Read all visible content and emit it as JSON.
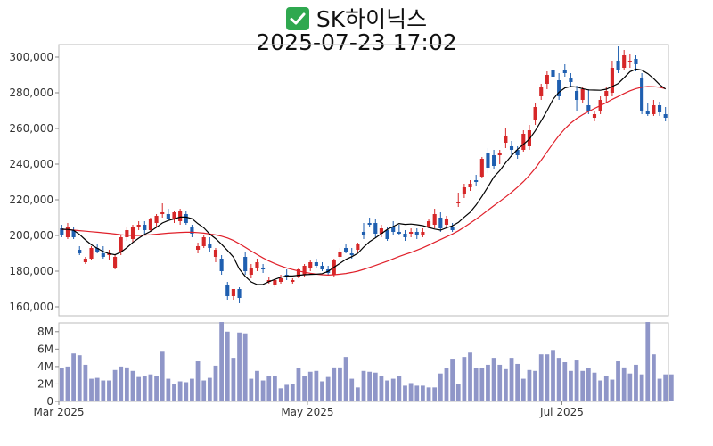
{
  "header": {
    "icon": "check-mark-icon",
    "stock_name": "SK하이닉스",
    "datetime": "2025-07-23 17:02"
  },
  "colors": {
    "up": "#d62728",
    "down": "#1f5fb0",
    "ma_short": "#000000",
    "ma_long": "#e0202a",
    "volume": "#8f96c8"
  },
  "chart_data": [
    {
      "type": "candlestick",
      "title": "",
      "y_ticks": [
        "160,000",
        "180,000",
        "200,000",
        "220,000",
        "240,000",
        "260,000",
        "280,000",
        "300,000"
      ],
      "x_ticks": [
        "Mar 2025",
        "May 2025",
        "Jul 2025"
      ],
      "ylim": [
        155000,
        307000
      ],
      "candles": [
        [
          204000,
          206000,
          199000,
          200000
        ],
        [
          199000,
          207000,
          198000,
          205000
        ],
        [
          203000,
          205000,
          198000,
          199000
        ],
        [
          192000,
          194000,
          189000,
          190000
        ],
        [
          185000,
          188000,
          184000,
          187000
        ],
        [
          187000,
          194000,
          186000,
          193000
        ],
        [
          193000,
          195000,
          190000,
          191000
        ],
        [
          190000,
          194000,
          187000,
          188000
        ],
        [
          189000,
          192000,
          186000,
          190000
        ],
        [
          182000,
          189000,
          181000,
          188000
        ],
        [
          191000,
          200000,
          189000,
          199000
        ],
        [
          199000,
          205000,
          197000,
          203000
        ],
        [
          198000,
          206000,
          196000,
          205000
        ],
        [
          205000,
          208000,
          203000,
          206000
        ],
        [
          206000,
          208000,
          201000,
          203000
        ],
        [
          203000,
          210000,
          202000,
          209000
        ],
        [
          207000,
          212000,
          205000,
          211000
        ],
        [
          212000,
          218000,
          210000,
          213000
        ],
        [
          212000,
          215000,
          208000,
          209000
        ],
        [
          209000,
          214000,
          207000,
          213000
        ],
        [
          208000,
          215000,
          206000,
          214000
        ],
        [
          212000,
          214000,
          206000,
          207000
        ],
        [
          205000,
          206000,
          199000,
          201000
        ],
        [
          192000,
          196000,
          190000,
          194000
        ],
        [
          194000,
          200000,
          193000,
          199000
        ],
        [
          195000,
          199000,
          191000,
          193000
        ],
        [
          188000,
          193000,
          185000,
          192000
        ],
        [
          187000,
          189000,
          178000,
          180000
        ],
        [
          172000,
          174000,
          164000,
          166000
        ],
        [
          166000,
          170000,
          164000,
          170000
        ],
        [
          170000,
          171000,
          162000,
          165000
        ],
        [
          188000,
          191000,
          178000,
          180000
        ],
        [
          178000,
          184000,
          176000,
          182000
        ],
        [
          182000,
          187000,
          180000,
          185000
        ],
        [
          182000,
          184000,
          179000,
          181000
        ],
        [
          174000,
          177000,
          173000,
          175000
        ],
        [
          172000,
          176000,
          171000,
          175000
        ],
        [
          174000,
          178000,
          173000,
          176000
        ],
        [
          178000,
          181000,
          175000,
          177000
        ],
        [
          174000,
          176000,
          173000,
          175000
        ],
        [
          177000,
          182000,
          176000,
          181000
        ],
        [
          178000,
          184000,
          177000,
          183000
        ],
        [
          182000,
          186000,
          180000,
          185000
        ],
        [
          185000,
          187000,
          182000,
          183000
        ],
        [
          183000,
          185000,
          180000,
          181000
        ],
        [
          181000,
          183000,
          178000,
          179000
        ],
        [
          178000,
          187000,
          177000,
          186000
        ],
        [
          188000,
          193000,
          186000,
          191000
        ],
        [
          193000,
          195000,
          190000,
          191000
        ],
        [
          190000,
          193000,
          187000,
          189000
        ],
        [
          192000,
          196000,
          191000,
          195000
        ],
        [
          202000,
          207000,
          198000,
          200000
        ],
        [
          207000,
          210000,
          205000,
          206000
        ],
        [
          207000,
          209000,
          199000,
          201000
        ],
        [
          201000,
          206000,
          199000,
          204000
        ],
        [
          203000,
          205000,
          197000,
          198000
        ],
        [
          205000,
          208000,
          200000,
          202000
        ],
        [
          202000,
          206000,
          200000,
          201000
        ],
        [
          201000,
          203000,
          197000,
          199000
        ],
        [
          201000,
          204000,
          199000,
          202000
        ],
        [
          202000,
          204000,
          198000,
          200000
        ],
        [
          200000,
          204000,
          199000,
          202000
        ],
        [
          205000,
          209000,
          204000,
          208000
        ],
        [
          206000,
          215000,
          204000,
          212000
        ],
        [
          210000,
          213000,
          202000,
          204000
        ],
        [
          206000,
          211000,
          205000,
          209000
        ],
        [
          205000,
          207000,
          202000,
          203000
        ],
        [
          218000,
          224000,
          216000,
          219000
        ],
        [
          223000,
          229000,
          221000,
          227000
        ],
        [
          227000,
          231000,
          225000,
          229000
        ],
        [
          231000,
          234000,
          228000,
          230000
        ],
        [
          233000,
          244000,
          232000,
          243000
        ],
        [
          246000,
          249000,
          235000,
          238000
        ],
        [
          245000,
          248000,
          237000,
          239000
        ],
        [
          245000,
          248000,
          240000,
          246000
        ],
        [
          252000,
          260000,
          249000,
          256000
        ],
        [
          250000,
          253000,
          244000,
          248000
        ],
        [
          248000,
          250000,
          243000,
          245000
        ],
        [
          248000,
          259000,
          247000,
          257000
        ],
        [
          250000,
          262000,
          248000,
          259000
        ],
        [
          265000,
          274000,
          262000,
          272000
        ],
        [
          278000,
          285000,
          276000,
          283000
        ],
        [
          285000,
          292000,
          282000,
          290000
        ],
        [
          293000,
          296000,
          287000,
          289000
        ],
        [
          287000,
          291000,
          276000,
          278000
        ],
        [
          293000,
          296000,
          289000,
          291000
        ],
        [
          288000,
          291000,
          283000,
          286000
        ],
        [
          281000,
          284000,
          270000,
          276000
        ],
        [
          276000,
          283000,
          274000,
          282000
        ],
        [
          273000,
          282000,
          268000,
          270000
        ],
        [
          266000,
          270000,
          264000,
          268000
        ],
        [
          270000,
          278000,
          268000,
          276000
        ],
        [
          278000,
          283000,
          274000,
          281000
        ],
        [
          280000,
          298000,
          278000,
          294000
        ],
        [
          298000,
          306000,
          291000,
          293000
        ],
        [
          294000,
          304000,
          293000,
          301000
        ],
        [
          297000,
          302000,
          294000,
          298000
        ],
        [
          299000,
          301000,
          292000,
          296000
        ],
        [
          288000,
          291000,
          268000,
          270000
        ],
        [
          270000,
          274000,
          267000,
          268000
        ],
        [
          268000,
          276000,
          267000,
          273000
        ],
        [
          273000,
          275000,
          267000,
          269000
        ],
        [
          268000,
          272000,
          264000,
          266000
        ]
      ],
      "ma_short": [
        203500,
        203400,
        202900,
        200600,
        197500,
        194800,
        192800,
        191000,
        189800,
        189200,
        190700,
        193200,
        196100,
        198500,
        200600,
        202300,
        204600,
        207000,
        208400,
        209300,
        210300,
        210300,
        209400,
        206600,
        204300,
        200800,
        198200,
        195100,
        191600,
        187900,
        181200,
        177100,
        174000,
        172500,
        172600,
        174100,
        175400,
        176600,
        177300,
        177300,
        177700,
        178000,
        178200,
        178300,
        178600,
        179900,
        182200,
        184400,
        186600,
        188100,
        190000,
        193500,
        196500,
        198700,
        201000,
        203400,
        205000,
        206700,
        206200,
        206400,
        206000,
        205500,
        204500,
        203600,
        203000,
        204300,
        205400,
        207300,
        210300,
        213000,
        217100,
        221900,
        227300,
        232800,
        236300,
        240800,
        244800,
        248300,
        251100,
        254000,
        258700,
        264200,
        270000,
        276300,
        280300,
        282700,
        283500,
        283200,
        282300,
        281600,
        281500,
        281400,
        282000,
        283500,
        285200,
        288400,
        291800,
        293300,
        292700,
        290700,
        287900,
        284600,
        282100
      ],
      "ma_long": [
        203500,
        203300,
        203000,
        202700,
        202400,
        202100,
        201800,
        201500,
        201200,
        200800,
        200400,
        200100,
        200000,
        200000,
        200200,
        200400,
        200700,
        201000,
        201300,
        201500,
        201700,
        201800,
        201800,
        201600,
        201300,
        200800,
        200300,
        199600,
        198600,
        197200,
        195400,
        193400,
        191300,
        189300,
        187400,
        185700,
        184200,
        182900,
        181800,
        180900,
        180100,
        179400,
        178800,
        178300,
        178000,
        177800,
        178000,
        178300,
        178700,
        179300,
        180000,
        181000,
        182100,
        183200,
        184400,
        185600,
        186900,
        188200,
        189400,
        190500,
        191800,
        193100,
        194600,
        196200,
        197700,
        199300,
        200800,
        202600,
        204700,
        206900,
        209200,
        211600,
        214200,
        216700,
        219100,
        221600,
        224200,
        227100,
        230200,
        233700,
        237700,
        242200,
        246900,
        251600,
        256000,
        259800,
        263000,
        265600,
        267700,
        269500,
        271200,
        272800,
        274500,
        276300,
        277900,
        279600,
        281100,
        282300,
        283100,
        283500,
        283400,
        283100,
        282300
      ]
    },
    {
      "type": "bar",
      "title": "",
      "y_ticks": [
        "0",
        "2M",
        "4M",
        "6M",
        "8M"
      ],
      "ylim": [
        0,
        9000000
      ],
      "values": [
        3800000,
        4000000,
        5500000,
        5300000,
        4200000,
        2600000,
        2700000,
        2400000,
        2400000,
        3600000,
        4000000,
        3900000,
        3500000,
        2800000,
        2900000,
        3100000,
        2900000,
        5700000,
        2600000,
        2000000,
        2300000,
        2200000,
        2600000,
        4600000,
        2400000,
        2700000,
        4100000,
        9100000,
        8000000,
        5000000,
        7900000,
        7800000,
        2600000,
        3500000,
        2400000,
        2900000,
        2900000,
        1500000,
        1900000,
        2000000,
        3800000,
        2900000,
        3400000,
        3500000,
        2300000,
        2800000,
        3900000,
        3900000,
        5100000,
        2600000,
        1600000,
        3500000,
        3400000,
        3300000,
        2900000,
        2400000,
        2600000,
        2900000,
        1800000,
        2100000,
        1800000,
        1800000,
        1600000,
        1600000,
        3200000,
        3800000,
        4800000,
        2000000,
        5100000,
        5600000,
        3800000,
        3800000,
        4200000,
        5000000,
        4200000,
        3700000,
        5000000,
        4300000,
        2600000,
        3600000,
        3500000,
        5400000,
        5400000,
        5900000,
        5000000,
        4500000,
        3500000,
        4700000,
        3500000,
        3800000,
        3300000,
        2400000,
        2900000,
        2500000,
        4600000,
        3900000,
        3200000,
        4200000,
        3100000,
        9100000,
        5400000,
        2600000,
        3100000,
        3100000
      ]
    }
  ]
}
